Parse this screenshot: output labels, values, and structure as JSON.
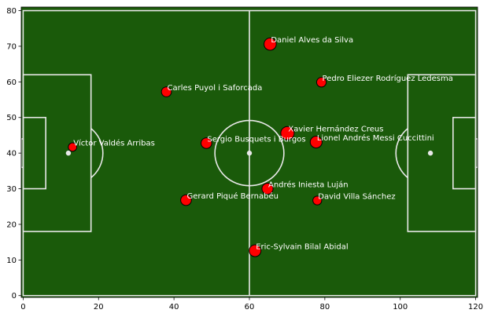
{
  "chart_data": {
    "type": "scatter",
    "title": "",
    "xlabel": "",
    "ylabel": "",
    "xlim": [
      -0.5,
      120.5
    ],
    "ylim": [
      -0.5,
      81
    ],
    "x_ticks": [
      0,
      20,
      40,
      60,
      80,
      100,
      120
    ],
    "y_ticks": [
      0,
      10,
      20,
      30,
      40,
      50,
      60,
      70,
      80
    ],
    "grid": false,
    "background": "pitch",
    "colors": {
      "pitch": "#1a5a0a",
      "lines": "#e8e8e8",
      "marker_fill": "#ff0000",
      "marker_edge": "#000000",
      "label": "#ffffff"
    },
    "points": [
      {
        "name": "Daniel Alves da Silva",
        "x": 65.5,
        "y": 70.6,
        "size": 2.0
      },
      {
        "name": "Pedro Eliezer Rodríguez Ledesma",
        "x": 79.1,
        "y": 59.9,
        "size": 1.3
      },
      {
        "name": "Carles Puyol i Saforcada",
        "x": 38.0,
        "y": 57.2,
        "size": 1.4
      },
      {
        "name": "Xavier Hernández Creus",
        "x": 70.1,
        "y": 45.6,
        "size": 2.3
      },
      {
        "name": "Sergio Busquets i Burgos",
        "x": 48.6,
        "y": 42.8,
        "size": 1.6
      },
      {
        "name": "Lionel Andrés Messi Cuccittini",
        "x": 77.7,
        "y": 43.1,
        "size": 1.9
      },
      {
        "name": "Víctor Valdés Arribas",
        "x": 13.1,
        "y": 41.7,
        "size": 1.0
      },
      {
        "name": "Andrés Iniesta Luján",
        "x": 64.8,
        "y": 30.0,
        "size": 1.7
      },
      {
        "name": "Gerard Piqué Bernabéu",
        "x": 43.2,
        "y": 26.8,
        "size": 1.6
      },
      {
        "name": "David Villa Sánchez",
        "x": 78.0,
        "y": 26.7,
        "size": 1.1
      },
      {
        "name": "Eric-Sylvain Bilal Abidal",
        "x": 61.5,
        "y": 12.6,
        "size": 1.9
      }
    ]
  }
}
